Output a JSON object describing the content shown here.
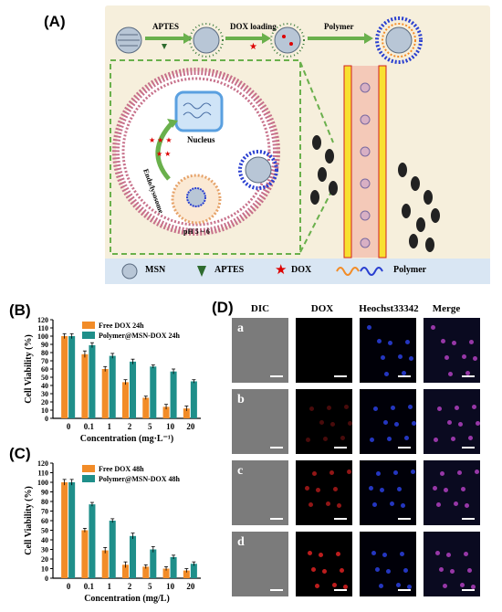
{
  "panel_labels": {
    "a": "(A)",
    "b": "(B)",
    "c": "(C)",
    "d": "(D)"
  },
  "schematic": {
    "step_labels": [
      "APTES",
      "DOX loading",
      "Polymer"
    ],
    "nucleus_label": "Nucleus",
    "endo_label": "Endo/lysosome",
    "ph_label": "pH  5 ~ 6",
    "legend": [
      {
        "icon": "msn-sphere-icon",
        "label": "MSN"
      },
      {
        "icon": "green-triangle-icon",
        "label": "APTES"
      },
      {
        "icon": "red-star-icon",
        "label": "DOX"
      },
      {
        "icon": "polymer-wave-icon",
        "label": "Polymer"
      }
    ]
  },
  "colors": {
    "free_dox": "#f28c28",
    "polymer_dox": "#1f8f8a",
    "schematic_bg": "#f6efdc",
    "legend_bg": "#d9e6f3"
  },
  "chart_data": [
    {
      "type": "bar",
      "ylabel": "Cell Viability (%)",
      "xlabel": "Concentration (mg·L⁻¹)",
      "categories": [
        "0",
        "0.1",
        "1",
        "2",
        "5",
        "10",
        "20"
      ],
      "ylim": [
        0,
        120
      ],
      "yticks": [
        0,
        10,
        20,
        30,
        40,
        50,
        60,
        70,
        80,
        90,
        100,
        110,
        120
      ],
      "series": [
        {
          "name": "Free DOX 24h",
          "values": [
            100,
            78,
            60,
            44,
            25,
            14,
            12
          ],
          "errors": [
            3,
            4,
            3,
            3,
            2,
            3,
            3
          ]
        },
        {
          "name": "Polymer@MSN-DOX 24h",
          "values": [
            100,
            89,
            76,
            69,
            63,
            57,
            45
          ],
          "errors": [
            3,
            3,
            3,
            3,
            2,
            3,
            2
          ]
        }
      ]
    },
    {
      "type": "bar",
      "ylabel": "Cell Viability (%)",
      "xlabel": "Concentration (mg/L)",
      "categories": [
        "0",
        "0.1",
        "1",
        "2",
        "5",
        "10",
        "20"
      ],
      "ylim": [
        0,
        120
      ],
      "yticks": [
        0,
        10,
        20,
        30,
        40,
        50,
        60,
        70,
        80,
        90,
        100,
        110,
        120
      ],
      "series": [
        {
          "name": "Free DOX 48h",
          "values": [
            100,
            50,
            29,
            14,
            12,
            10,
            8
          ],
          "errors": [
            3,
            2,
            3,
            3,
            2,
            2,
            2
          ]
        },
        {
          "name": "Polymer@MSN-DOX 48h",
          "values": [
            100,
            77,
            60,
            44,
            30,
            22,
            15
          ],
          "errors": [
            3,
            2,
            2,
            3,
            3,
            2,
            2
          ]
        }
      ]
    }
  ],
  "micrographs": {
    "columns": [
      "DIC",
      "DOX",
      "Heochst33342",
      "Merge"
    ],
    "rows": [
      "a",
      "b",
      "c",
      "d"
    ]
  }
}
